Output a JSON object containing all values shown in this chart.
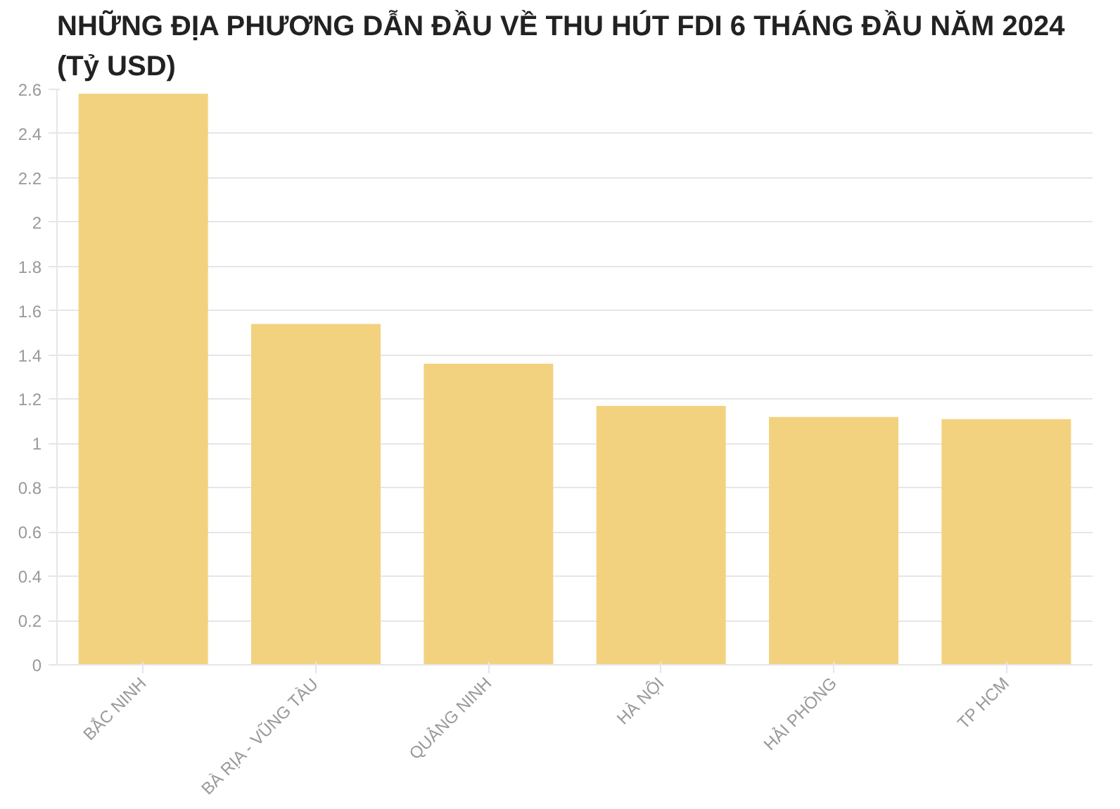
{
  "chart_data": {
    "type": "bar",
    "title": "NHỮNG ĐỊA PHƯƠNG DẪN ĐẦU VỀ THU HÚT FDI 6 THÁNG ĐẦU NĂM 2024\n(Tỷ USD)",
    "categories": [
      "BẮC NINH",
      "BÀ RỊA - VŨNG TÀU",
      "QUẢNG NINH",
      "HÀ NỘI",
      "HẢI PHÒNG",
      "TP HCM"
    ],
    "values": [
      2.58,
      1.54,
      1.36,
      1.17,
      1.12,
      1.11
    ],
    "color": "#f3d27f",
    "ylim": [
      0,
      2.6
    ],
    "yticks": [
      0,
      0.2,
      0.4,
      0.6,
      0.8,
      1,
      1.2,
      1.4,
      1.6,
      1.8,
      2,
      2.2,
      2.4,
      2.6
    ],
    "grid": "y"
  }
}
